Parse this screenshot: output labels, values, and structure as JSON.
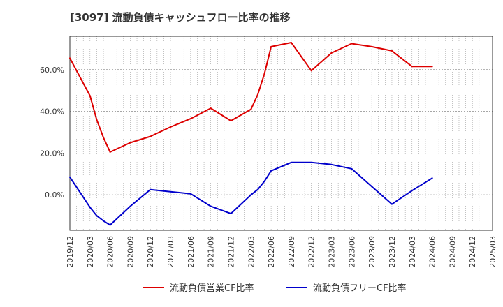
{
  "chart_data": {
    "type": "line",
    "title": "[3097]  流動負債キャッシュフロー比率の推移",
    "xlabel": "",
    "ylabel": "",
    "ylim": [
      -17,
      76
    ],
    "xlim": [
      "2019/12",
      "2025/03"
    ],
    "grid": true,
    "legend_position": "bottom-center",
    "x_tick_labels": [
      "2019/12",
      "2020/03",
      "2020/06",
      "2020/09",
      "2020/12",
      "2021/03",
      "2021/06",
      "2021/09",
      "2021/12",
      "2022/03",
      "2022/06",
      "2022/09",
      "2022/12",
      "2023/03",
      "2023/06",
      "2023/09",
      "2023/12",
      "2024/03",
      "2024/06",
      "2024/09",
      "2024/12",
      "2025/03"
    ],
    "y_ticks": [
      0,
      20,
      40,
      60
    ],
    "y_tick_labels": [
      "0.0%",
      "20.0%",
      "40.0%",
      "60.0%"
    ],
    "series": [
      {
        "name": "流動負債営業CF比率",
        "color": "#dd0000",
        "x": [
          "2019/12",
          "2020/03",
          "2020/04",
          "2020/05",
          "2020/06",
          "2020/09",
          "2020/12",
          "2021/03",
          "2021/06",
          "2021/09",
          "2021/12",
          "2022/03",
          "2022/04",
          "2022/05",
          "2022/06",
          "2022/09",
          "2022/12",
          "2023/03",
          "2023/06",
          "2023/09",
          "2023/12",
          "2024/03",
          "2024/06"
        ],
        "values": [
          65.5,
          47.5,
          36,
          27.5,
          20.5,
          25,
          28,
          32.5,
          36.5,
          41.5,
          35.5,
          41,
          48,
          58,
          71,
          73,
          59.5,
          68,
          72.5,
          71,
          69,
          61.5,
          61.5
        ]
      },
      {
        "name": "流動負債フリーCF比率",
        "color": "#0000cc",
        "x": [
          "2019/12",
          "2020/03",
          "2020/04",
          "2020/05",
          "2020/06",
          "2020/09",
          "2020/12",
          "2021/03",
          "2021/06",
          "2021/09",
          "2021/12",
          "2022/03",
          "2022/04",
          "2022/05",
          "2022/06",
          "2022/09",
          "2022/12",
          "2023/03",
          "2023/06",
          "2023/09",
          "2023/12",
          "2024/03",
          "2024/06"
        ],
        "values": [
          8.5,
          -6,
          -10,
          -12.5,
          -14.5,
          -5.5,
          2.5,
          1.5,
          0.5,
          -5.5,
          -9,
          0,
          2.5,
          6.5,
          11.5,
          15.5,
          15.5,
          14.5,
          12.5,
          4,
          -4.5,
          2,
          8
        ]
      }
    ]
  }
}
